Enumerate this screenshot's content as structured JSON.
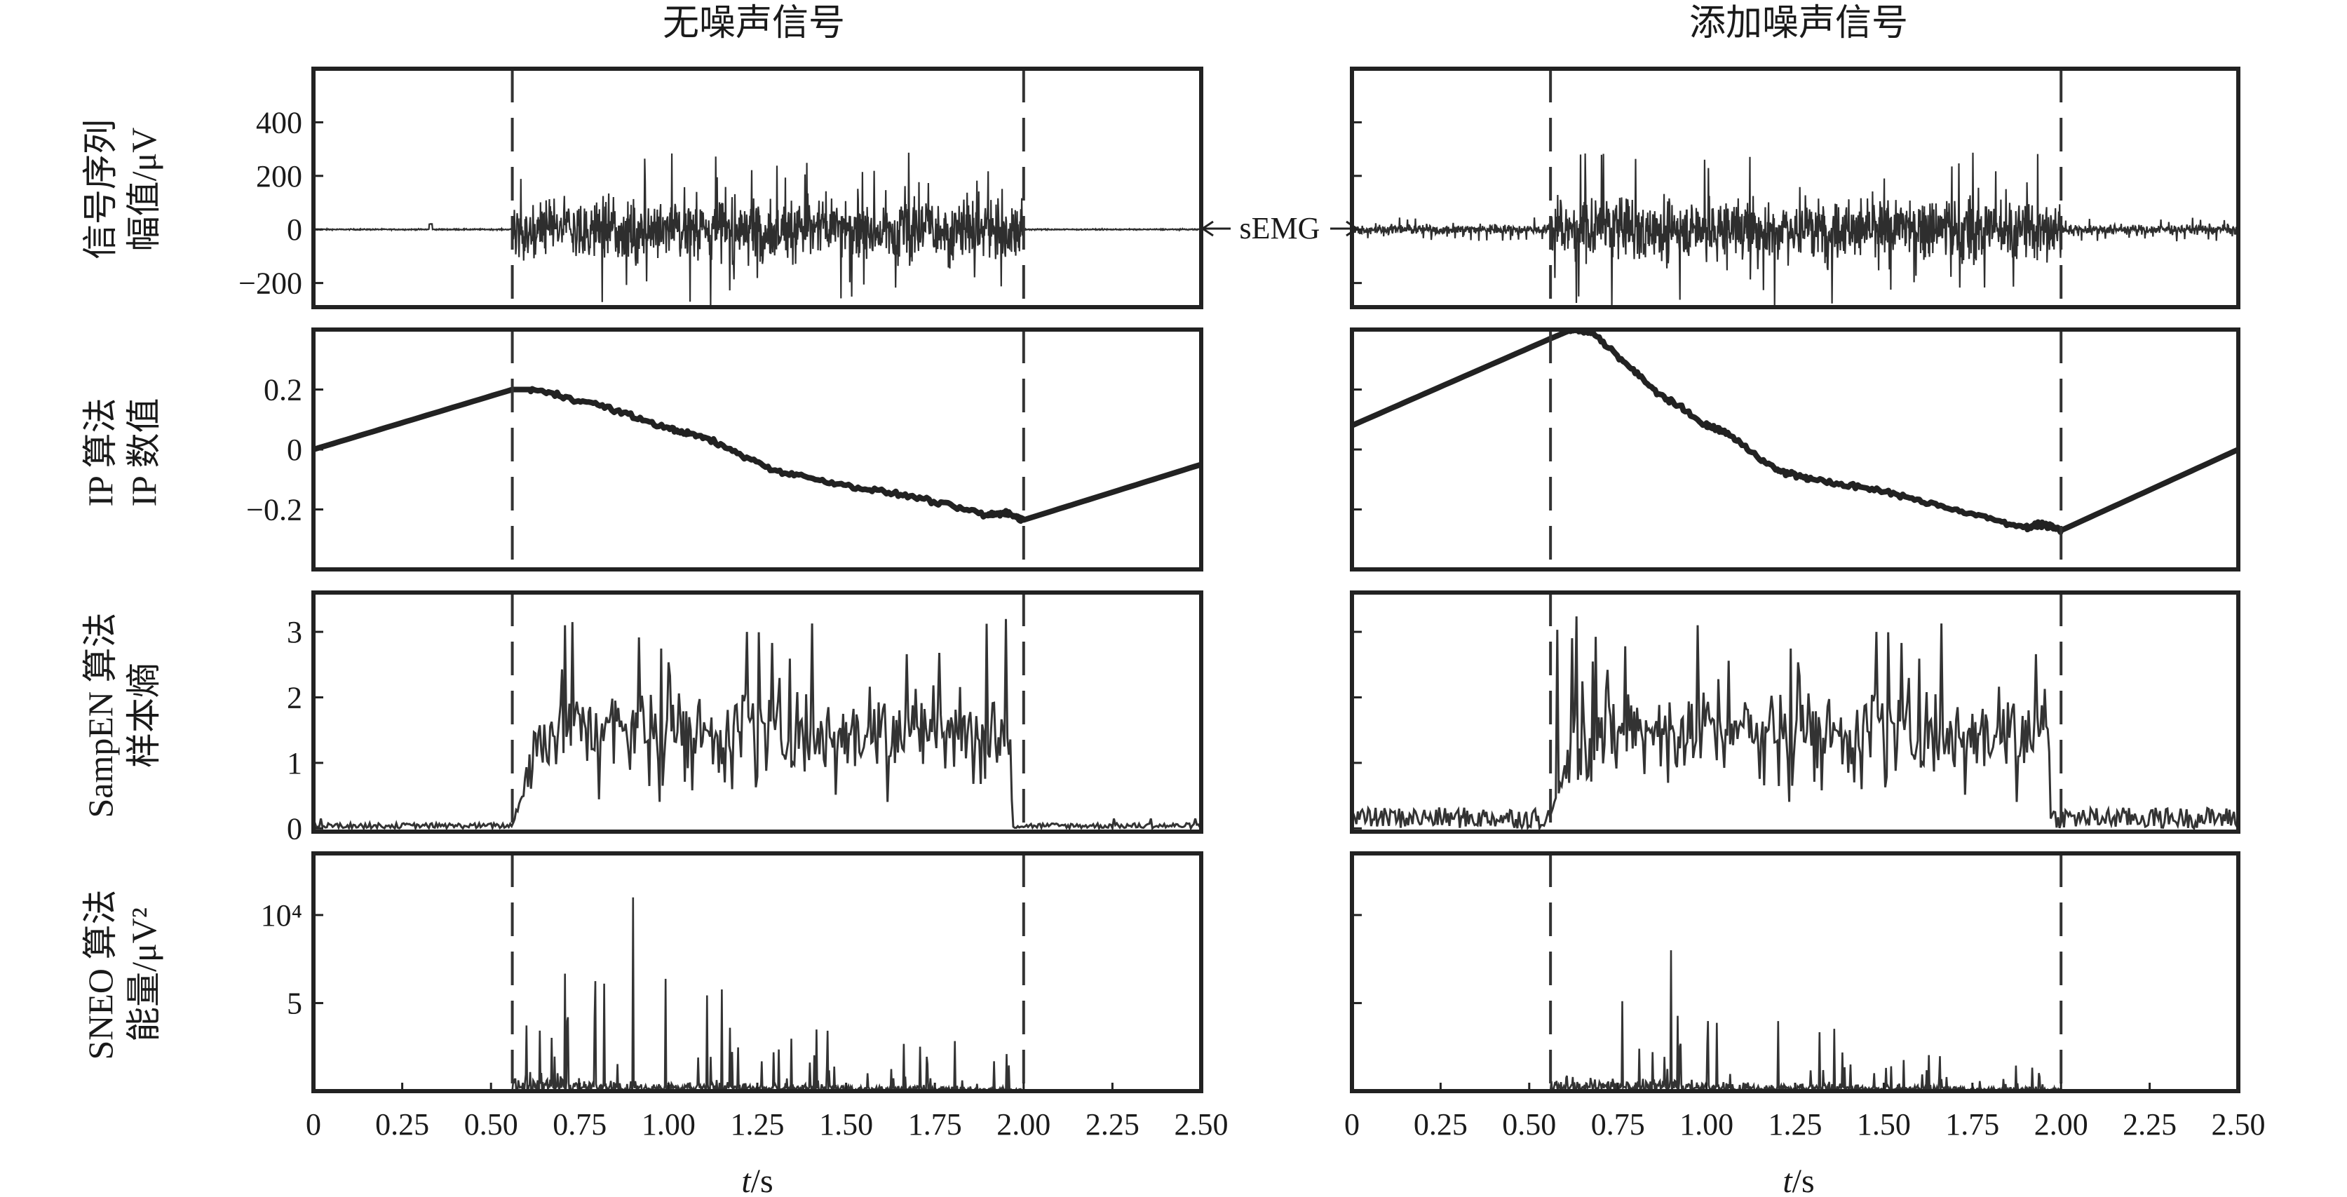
{
  "chart_data": {
    "type": "line",
    "x_axis": {
      "label_italic": "t",
      "label_rest": "/s",
      "ticks": [
        "0",
        "0.25",
        "0.50",
        "0.75",
        "1.00",
        "1.25",
        "1.50",
        "1.75",
        "2.00",
        "2.25",
        "2.50"
      ],
      "xlim": [
        0,
        2.5
      ]
    },
    "onset_markers_s": [
      0.56,
      2.0
    ],
    "columns": [
      {
        "title": "无噪声信号",
        "noise": false
      },
      {
        "title": "添加噪声信号",
        "noise": true
      }
    ],
    "panels": [
      {
        "key": "semg",
        "ylabel": [
          "信号序列",
          "幅值/μV"
        ],
        "yticks": [
          "400",
          "200",
          "0",
          "−200"
        ],
        "ytick_values": [
          400,
          200,
          0,
          -200
        ],
        "ylim": [
          -290,
          600
        ],
        "annotation": "sEMG",
        "burst_range_s": [
          0.56,
          2.0
        ],
        "approx_amplitude_uV": {
          "typical": 100,
          "peak": 290,
          "noise_floor_clean": 3,
          "noise_floor_noisy": 25
        }
      },
      {
        "key": "ip",
        "ylabel": [
          "IP 算法",
          "IP 数值"
        ],
        "yticks": [
          "0.2",
          "0",
          "−0.2"
        ],
        "ytick_values": [
          0.2,
          0,
          -0.2
        ],
        "ylim": [
          -0.4,
          0.4
        ],
        "series": [
          {
            "column": 0,
            "x": [
              0,
              0.56,
              0.62,
              0.8,
              1.0,
              1.1,
              1.3,
              1.5,
              1.7,
              1.9,
              1.95,
              2.0,
              2.5
            ],
            "y": [
              0,
              0.2,
              0.2,
              0.15,
              0.07,
              0.04,
              -0.07,
              -0.12,
              -0.16,
              -0.22,
              -0.21,
              -0.235,
              -0.05
            ]
          },
          {
            "column": 1,
            "x": [
              0,
              0.56,
              0.62,
              0.68,
              0.85,
              1.0,
              1.05,
              1.2,
              1.3,
              1.5,
              1.7,
              1.9,
              1.95,
              2.0,
              2.5
            ],
            "y": [
              0.08,
              0.37,
              0.4,
              0.39,
              0.2,
              0.08,
              0.06,
              -0.07,
              -0.1,
              -0.14,
              -0.2,
              -0.26,
              -0.25,
              -0.27,
              0
            ]
          }
        ]
      },
      {
        "key": "sampen",
        "ylabel": [
          "SampEN 算法",
          "样本熵"
        ],
        "yticks": [
          "3",
          "2",
          "1",
          "0"
        ],
        "ytick_values": [
          3,
          2,
          1,
          0
        ],
        "ylim": [
          -0.05,
          3.6
        ],
        "approx_levels": {
          "active_mean": 1.5,
          "active_peak": 3.25,
          "rest_clean": 0.05,
          "rest_noisy": 0.2
        }
      },
      {
        "key": "sneo",
        "ylabel": [
          "SNEO 算法",
          "能量/μV²"
        ],
        "yticks": [
          "10⁴",
          "5"
        ],
        "ytick_values": [
          10,
          5
        ],
        "ylim": [
          0,
          13.5
        ],
        "ytick_labels_show_in": [
          0
        ],
        "approx_peaks": {
          "clean_max": 11,
          "noisy_max": 8
        }
      }
    ]
  }
}
